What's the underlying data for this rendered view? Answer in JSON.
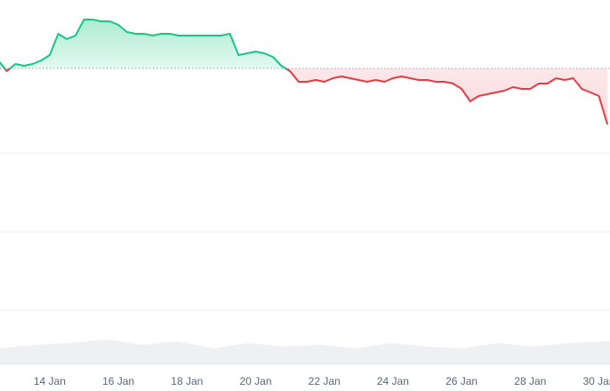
{
  "chart_data": {
    "type": "line",
    "categories": [
      null,
      null,
      null,
      null,
      null,
      null,
      "14 Jan",
      null,
      null,
      null,
      null,
      null,
      null,
      null,
      "16 Jan",
      null,
      null,
      null,
      null,
      null,
      null,
      null,
      "18 Jan",
      null,
      null,
      null,
      null,
      null,
      null,
      null,
      "20 Jan",
      null,
      null,
      null,
      null,
      null,
      null,
      null,
      "22 Jan",
      null,
      null,
      null,
      null,
      null,
      null,
      null,
      "24 Jan",
      null,
      null,
      null,
      null,
      null,
      null,
      null,
      "26 Jan",
      null,
      null,
      null,
      null,
      null,
      null,
      null,
      "28 Jan",
      null,
      null,
      null,
      null,
      null,
      null,
      null,
      "30 Jan",
      null
    ],
    "values": [
      342,
      330,
      338,
      336,
      338,
      342,
      348,
      372,
      366,
      370,
      388,
      388,
      386,
      386,
      382,
      374,
      372,
      372,
      370,
      372,
      372,
      370,
      370,
      370,
      370,
      370,
      370,
      372,
      348,
      350,
      352,
      350,
      346,
      336,
      330,
      318,
      318,
      320,
      318,
      322,
      324,
      322,
      320,
      318,
      320,
      318,
      322,
      324,
      322,
      320,
      320,
      318,
      318,
      316,
      310,
      296,
      302,
      304,
      306,
      308,
      312,
      310,
      310,
      316,
      316,
      322,
      320,
      322,
      310,
      306,
      302,
      270
    ],
    "baseline": 333,
    "up_color": "#16c784",
    "down_color": "#ea3943",
    "ylim": [
      0,
      410
    ],
    "yticks": [
      61,
      149,
      238
    ],
    "grid": true
  }
}
